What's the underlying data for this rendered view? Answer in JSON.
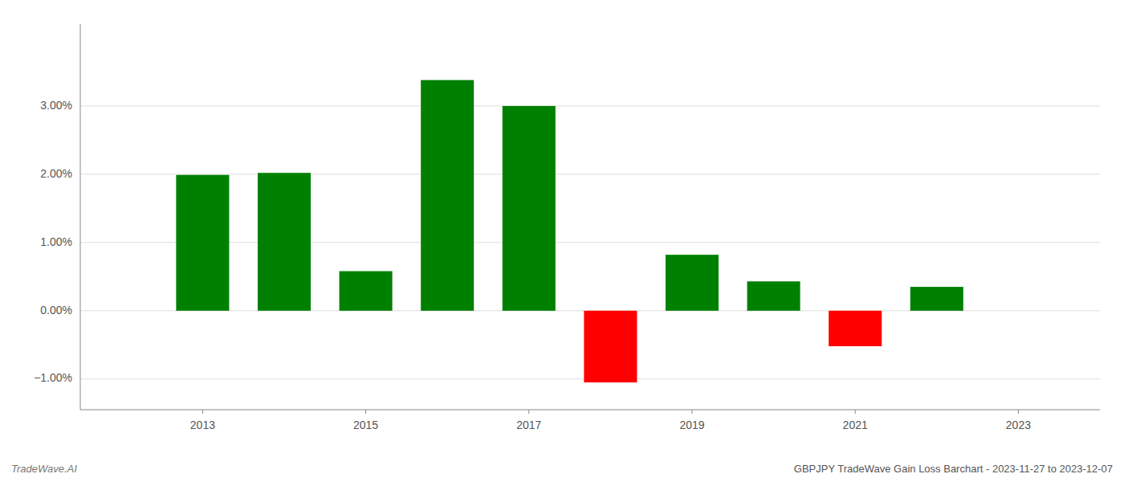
{
  "chart_data": {
    "type": "bar",
    "title": "GBPJPY TradeWave Gain Loss Barchart - 2023-11-27 to 2023-12-07",
    "annotations": [
      "TradeWave.AI"
    ],
    "x": [
      2013,
      2014,
      2015,
      2016,
      2017,
      2018,
      2019,
      2020,
      2021,
      2022
    ],
    "values": [
      0.0199,
      0.0202,
      0.0058,
      0.0338,
      0.03,
      -0.0105,
      0.0082,
      0.0043,
      -0.0052,
      0.0035
    ],
    "colors": [
      "#008000",
      "#008000",
      "#008000",
      "#008000",
      "#008000",
      "#ff0000",
      "#008000",
      "#008000",
      "#ff0000",
      "#008000"
    ],
    "xlim": [
      2011.5,
      2024.0
    ],
    "xticks": [
      2013,
      2015,
      2017,
      2019,
      2021,
      2023
    ],
    "ylim": [
      -0.0145,
      0.042
    ],
    "yticks": [
      {
        "value": -0.01,
        "label": "−1.00%"
      },
      {
        "value": 0.0,
        "label": "0.00%"
      },
      {
        "value": 0.01,
        "label": "1.00%"
      },
      {
        "value": 0.02,
        "label": "2.00%"
      },
      {
        "value": 0.03,
        "label": "3.00%"
      }
    ],
    "grid": true
  }
}
